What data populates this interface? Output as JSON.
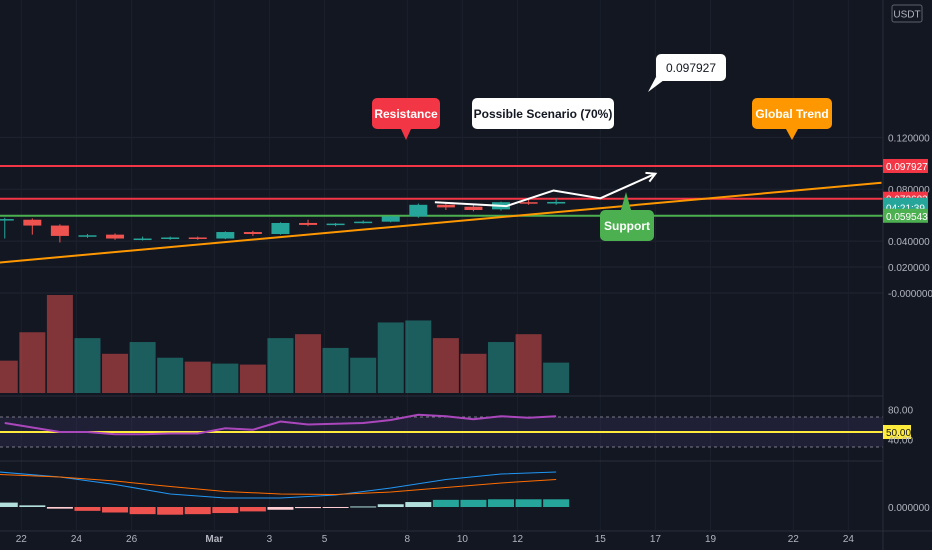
{
  "currency_badge": "USDT",
  "price_axis": {
    "ticks": [
      {
        "value": 0.12,
        "label": "0.120000"
      },
      {
        "value": 0.08,
        "label": "0.080000"
      },
      {
        "value": 0.04,
        "label": "0.040000"
      },
      {
        "value": 0.02,
        "label": "0.020000"
      },
      {
        "value": 0.0,
        "label": "-0.000000"
      }
    ],
    "tags": [
      {
        "label": "0.097927",
        "value": 0.097927,
        "color": "#f23645"
      },
      {
        "label": "0.072683",
        "value": 0.072683,
        "color": "#f23645"
      },
      {
        "label": "0.068054",
        "value": 0.068054,
        "color": "#26a69a"
      },
      {
        "label": "04:21:39",
        "value": 0.066,
        "color": "#26a69a"
      },
      {
        "label": "0.059543",
        "value": 0.059543,
        "color": "#4caf50"
      }
    ]
  },
  "time_axis": {
    "labels": [
      {
        "label": "22",
        "day": 0
      },
      {
        "label": "24",
        "day": 2
      },
      {
        "label": "26",
        "day": 4
      },
      {
        "label": "Mar",
        "day": 7
      },
      {
        "label": "3",
        "day": 9
      },
      {
        "label": "5",
        "day": 11
      },
      {
        "label": "8",
        "day": 14
      },
      {
        "label": "10",
        "day": 16
      },
      {
        "label": "12",
        "day": 18
      },
      {
        "label": "15",
        "day": 21
      },
      {
        "label": "17",
        "day": 23
      },
      {
        "label": "19",
        "day": 25
      },
      {
        "label": "22",
        "day": 28
      },
      {
        "label": "24",
        "day": 30
      }
    ]
  },
  "annotations": {
    "resistance": {
      "label": "Resistance",
      "color": "#f23645"
    },
    "scenario": {
      "label": "Possible Scenario (70%)",
      "target_label": "0.097927"
    },
    "global_trend": {
      "label": "Global Trend",
      "color": "#ff9800"
    },
    "support": {
      "label": "Support",
      "color": "#4caf50"
    }
  },
  "rsi_axis": [
    {
      "value": 80,
      "label": "80.00"
    },
    {
      "value": 50,
      "label": "50.00"
    },
    {
      "value": 40,
      "label": "40.00"
    }
  ],
  "macd_axis": [
    {
      "value": 0,
      "label": "0.000000"
    }
  ],
  "chart_data": {
    "type": "candlestick",
    "levels": {
      "resistance_high": 0.097927,
      "resistance": 0.072683,
      "support": 0.059543
    },
    "trendline": {
      "start_day": -0.8,
      "start_price": 0.0235,
      "end_day": 31.2,
      "end_price": 0.085
    },
    "scenario_path": [
      {
        "day": 15.0,
        "price": 0.07
      },
      {
        "day": 17.6,
        "price": 0.067
      },
      {
        "day": 19.3,
        "price": 0.079
      },
      {
        "day": 21.0,
        "price": 0.073
      },
      {
        "day": 23.0,
        "price": 0.092
      }
    ],
    "candles": [
      {
        "day": -0.6,
        "open": 0.056,
        "close": 0.057,
        "high": 0.058,
        "low": 0.042
      },
      {
        "day": 0.4,
        "open": 0.0565,
        "close": 0.052,
        "high": 0.0575,
        "low": 0.045
      },
      {
        "day": 1.4,
        "open": 0.052,
        "close": 0.044,
        "high": 0.053,
        "low": 0.039
      },
      {
        "day": 2.4,
        "open": 0.044,
        "close": 0.0445,
        "high": 0.0455,
        "low": 0.0425
      },
      {
        "day": 3.4,
        "open": 0.045,
        "close": 0.042,
        "high": 0.046,
        "low": 0.041
      },
      {
        "day": 4.4,
        "open": 0.0415,
        "close": 0.042,
        "high": 0.0435,
        "low": 0.0405
      },
      {
        "day": 5.4,
        "open": 0.0418,
        "close": 0.0428,
        "high": 0.0435,
        "low": 0.041
      },
      {
        "day": 6.4,
        "open": 0.0428,
        "close": 0.0418,
        "high": 0.0435,
        "low": 0.041
      },
      {
        "day": 7.4,
        "open": 0.042,
        "close": 0.047,
        "high": 0.0475,
        "low": 0.0415
      },
      {
        "day": 8.4,
        "open": 0.047,
        "close": 0.0455,
        "high": 0.048,
        "low": 0.044
      },
      {
        "day": 9.4,
        "open": 0.0455,
        "close": 0.054,
        "high": 0.0545,
        "low": 0.045
      },
      {
        "day": 10.4,
        "open": 0.054,
        "close": 0.0525,
        "high": 0.0565,
        "low": 0.0515
      },
      {
        "day": 11.4,
        "open": 0.0525,
        "close": 0.0535,
        "high": 0.054,
        "low": 0.0515
      },
      {
        "day": 12.4,
        "open": 0.054,
        "close": 0.055,
        "high": 0.056,
        "low": 0.0535
      },
      {
        "day": 13.4,
        "open": 0.055,
        "close": 0.059,
        "high": 0.0595,
        "low": 0.0545
      },
      {
        "day": 14.4,
        "open": 0.059,
        "close": 0.068,
        "high": 0.069,
        "low": 0.058
      },
      {
        "day": 15.4,
        "open": 0.068,
        "close": 0.066,
        "high": 0.07,
        "low": 0.064
      },
      {
        "day": 16.4,
        "open": 0.0665,
        "close": 0.064,
        "high": 0.069,
        "low": 0.063
      },
      {
        "day": 17.4,
        "open": 0.0645,
        "close": 0.07,
        "high": 0.0705,
        "low": 0.0635
      },
      {
        "day": 18.4,
        "open": 0.07,
        "close": 0.069,
        "high": 0.073,
        "low": 0.068
      },
      {
        "day": 19.4,
        "open": 0.069,
        "close": 0.0702,
        "high": 0.073,
        "low": 0.068
      }
    ],
    "volume": [
      {
        "day": -0.6,
        "value": 33,
        "dir": "down"
      },
      {
        "day": 0.4,
        "value": 62,
        "dir": "down"
      },
      {
        "day": 1.4,
        "value": 100,
        "dir": "down"
      },
      {
        "day": 2.4,
        "value": 56,
        "dir": "up"
      },
      {
        "day": 3.4,
        "value": 40,
        "dir": "down"
      },
      {
        "day": 4.4,
        "value": 52,
        "dir": "up"
      },
      {
        "day": 5.4,
        "value": 36,
        "dir": "up"
      },
      {
        "day": 6.4,
        "value": 32,
        "dir": "down"
      },
      {
        "day": 7.4,
        "value": 30,
        "dir": "up"
      },
      {
        "day": 8.4,
        "value": 29,
        "dir": "down"
      },
      {
        "day": 9.4,
        "value": 56,
        "dir": "up"
      },
      {
        "day": 10.4,
        "value": 60,
        "dir": "down"
      },
      {
        "day": 11.4,
        "value": 46,
        "dir": "up"
      },
      {
        "day": 12.4,
        "value": 36,
        "dir": "up"
      },
      {
        "day": 13.4,
        "value": 72,
        "dir": "up"
      },
      {
        "day": 14.4,
        "value": 74,
        "dir": "up"
      },
      {
        "day": 15.4,
        "value": 56,
        "dir": "down"
      },
      {
        "day": 16.4,
        "value": 40,
        "dir": "down"
      },
      {
        "day": 17.4,
        "value": 52,
        "dir": "up"
      },
      {
        "day": 18.4,
        "value": 60,
        "dir": "down"
      },
      {
        "day": 19.4,
        "value": 31,
        "dir": "up"
      }
    ],
    "rsi": {
      "color": "#ab47bc",
      "band": [
        30,
        70
      ],
      "midline": 50,
      "values": [
        {
          "day": -0.6,
          "value": 62
        },
        {
          "day": 0.4,
          "value": 56
        },
        {
          "day": 1.4,
          "value": 50
        },
        {
          "day": 2.4,
          "value": 50
        },
        {
          "day": 3.4,
          "value": 47
        },
        {
          "day": 4.4,
          "value": 47
        },
        {
          "day": 5.4,
          "value": 48
        },
        {
          "day": 6.4,
          "value": 48
        },
        {
          "day": 7.4,
          "value": 55
        },
        {
          "day": 8.4,
          "value": 53
        },
        {
          "day": 9.4,
          "value": 64
        },
        {
          "day": 10.4,
          "value": 60
        },
        {
          "day": 11.4,
          "value": 61
        },
        {
          "day": 12.4,
          "value": 62
        },
        {
          "day": 13.4,
          "value": 66
        },
        {
          "day": 14.4,
          "value": 73
        },
        {
          "day": 15.4,
          "value": 71
        },
        {
          "day": 16.4,
          "value": 67
        },
        {
          "day": 17.4,
          "value": 71
        },
        {
          "day": 18.4,
          "value": 69
        },
        {
          "day": 19.4,
          "value": 71
        }
      ]
    },
    "macd": {
      "macd_color": "#2196f3",
      "signal_color": "#ff6d00",
      "macd": [
        {
          "day": -0.8,
          "value": 70
        },
        {
          "day": 1.4,
          "value": 60
        },
        {
          "day": 3.4,
          "value": 45
        },
        {
          "day": 5.4,
          "value": 26
        },
        {
          "day": 7.4,
          "value": 18
        },
        {
          "day": 9.4,
          "value": 18
        },
        {
          "day": 11.4,
          "value": 24
        },
        {
          "day": 13.4,
          "value": 38
        },
        {
          "day": 15.4,
          "value": 55
        },
        {
          "day": 17.4,
          "value": 66
        },
        {
          "day": 19.4,
          "value": 70
        }
      ],
      "signal": [
        {
          "day": -0.8,
          "value": 65
        },
        {
          "day": 1.4,
          "value": 60
        },
        {
          "day": 3.4,
          "value": 52
        },
        {
          "day": 5.4,
          "value": 41
        },
        {
          "day": 7.4,
          "value": 31
        },
        {
          "day": 9.4,
          "value": 26
        },
        {
          "day": 11.4,
          "value": 25
        },
        {
          "day": 13.4,
          "value": 30
        },
        {
          "day": 15.4,
          "value": 39
        },
        {
          "day": 17.4,
          "value": 48
        },
        {
          "day": 19.4,
          "value": 55
        }
      ],
      "histogram": [
        {
          "day": -0.6,
          "value": 8
        },
        {
          "day": 0.4,
          "value": 3
        },
        {
          "day": 1.4,
          "value": -3
        },
        {
          "day": 2.4,
          "value": -7
        },
        {
          "day": 3.4,
          "value": -10
        },
        {
          "day": 4.4,
          "value": -13
        },
        {
          "day": 5.4,
          "value": -14
        },
        {
          "day": 6.4,
          "value": -13
        },
        {
          "day": 7.4,
          "value": -11
        },
        {
          "day": 8.4,
          "value": -8
        },
        {
          "day": 9.4,
          "value": -5
        },
        {
          "day": 10.4,
          "value": -2
        },
        {
          "day": 11.4,
          "value": -1
        },
        {
          "day": 12.4,
          "value": 1
        },
        {
          "day": 13.4,
          "value": 5
        },
        {
          "day": 14.4,
          "value": 9
        },
        {
          "day": 15.4,
          "value": 13
        },
        {
          "day": 16.4,
          "value": 13
        },
        {
          "day": 17.4,
          "value": 14
        },
        {
          "day": 18.4,
          "value": 14
        },
        {
          "day": 19.4,
          "value": 14
        }
      ]
    }
  }
}
